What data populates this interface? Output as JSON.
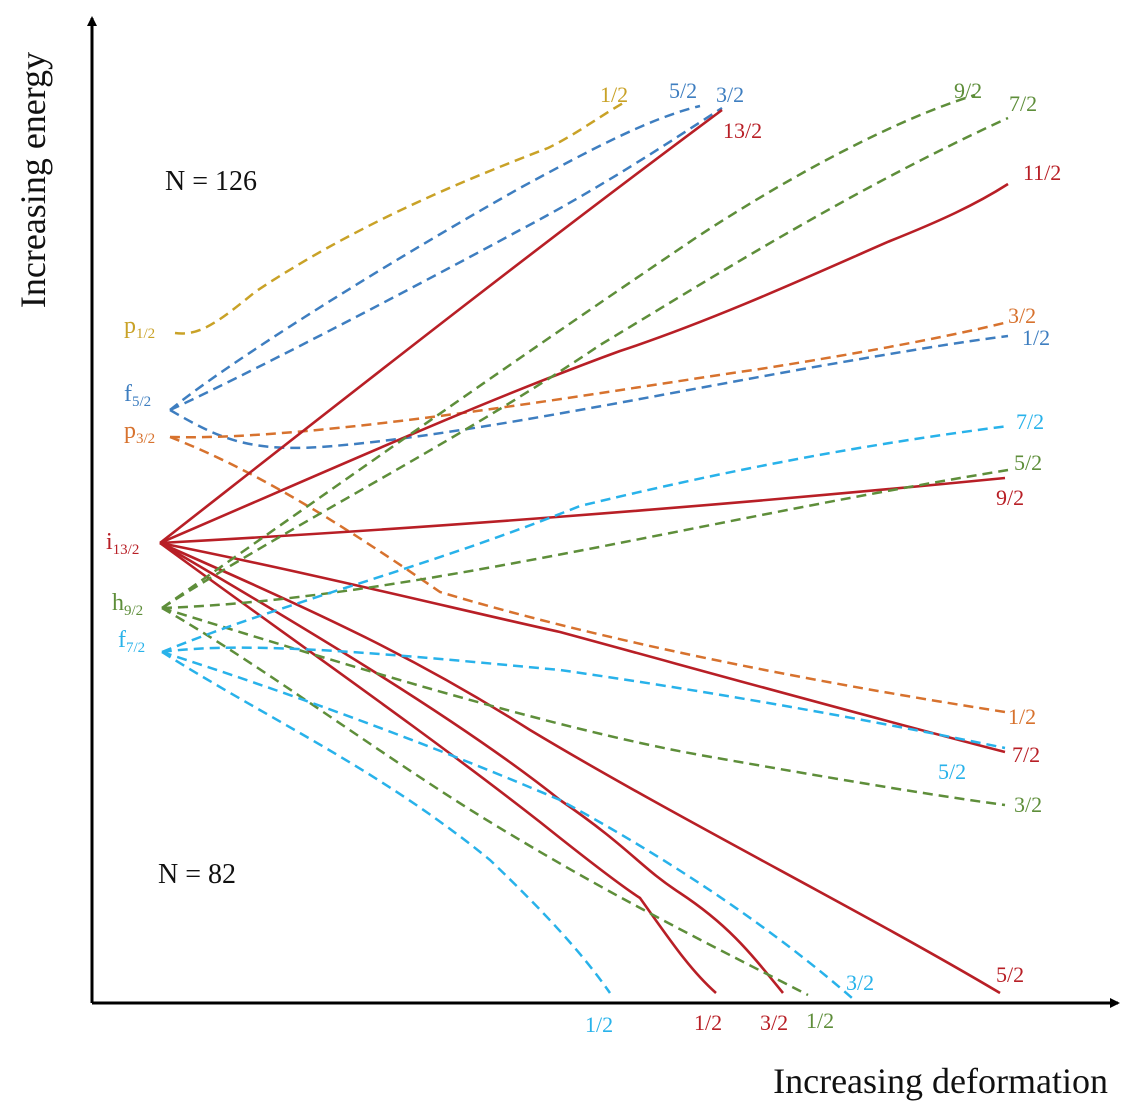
{
  "colors": {
    "axis": "#000000",
    "p12": "#C9A227",
    "f52": "#3E7EC0",
    "p32": "#D7722E",
    "i132": "#B81F26",
    "h92": "#5E8E3A",
    "f72": "#28B2EA"
  },
  "axes": {
    "y_title": "Increasing energy",
    "x_title": "Increasing deformation"
  },
  "regions": {
    "upper": "N = 126",
    "lower": "N = 82"
  },
  "states": {
    "p12": {
      "main": "p",
      "sub": "1/2"
    },
    "f52": {
      "main": "f",
      "sub": "5/2"
    },
    "p32": {
      "main": "p",
      "sub": "3/2"
    },
    "i132": {
      "main": "i",
      "sub": "13/2"
    },
    "h92": {
      "main": "h",
      "sub": "9/2"
    },
    "f72": {
      "main": "f",
      "sub": "7/2"
    }
  },
  "levels": [
    {
      "id": "p12-1-2",
      "origin": "p12",
      "label": "1/2",
      "dashed": true
    },
    {
      "id": "f52-5-2",
      "origin": "f52",
      "label": "5/2",
      "dashed": true
    },
    {
      "id": "f52-3-2",
      "origin": "f52",
      "label": "3/2",
      "dashed": true
    },
    {
      "id": "f52-1-2",
      "origin": "f52",
      "label": "1/2",
      "dashed": true
    },
    {
      "id": "p32-3-2",
      "origin": "p32",
      "label": "3/2",
      "dashed": true
    },
    {
      "id": "p32-1-2",
      "origin": "p32",
      "label": "1/2",
      "dashed": true
    },
    {
      "id": "i132-13-2",
      "origin": "i132",
      "label": "13/2",
      "dashed": false
    },
    {
      "id": "i132-11-2",
      "origin": "i132",
      "label": "11/2",
      "dashed": false
    },
    {
      "id": "i132-9-2",
      "origin": "i132",
      "label": "9/2",
      "dashed": false
    },
    {
      "id": "i132-7-2",
      "origin": "i132",
      "label": "7/2",
      "dashed": false
    },
    {
      "id": "i132-5-2",
      "origin": "i132",
      "label": "5/2",
      "dashed": false
    },
    {
      "id": "i132-3-2",
      "origin": "i132",
      "label": "3/2",
      "dashed": false
    },
    {
      "id": "i132-1-2",
      "origin": "i132",
      "label": "1/2",
      "dashed": false
    },
    {
      "id": "h92-9-2",
      "origin": "h92",
      "label": "9/2",
      "dashed": true
    },
    {
      "id": "h92-7-2",
      "origin": "h92",
      "label": "7/2",
      "dashed": true
    },
    {
      "id": "h92-5-2",
      "origin": "h92",
      "label": "5/2",
      "dashed": true
    },
    {
      "id": "h92-3-2",
      "origin": "h92",
      "label": "3/2",
      "dashed": true
    },
    {
      "id": "h92-1-2",
      "origin": "h92",
      "label": "1/2",
      "dashed": true
    },
    {
      "id": "f72-7-2",
      "origin": "f72",
      "label": "7/2",
      "dashed": true
    },
    {
      "id": "f72-5-2",
      "origin": "f72",
      "label": "5/2",
      "dashed": true
    },
    {
      "id": "f72-3-2",
      "origin": "f72",
      "label": "3/2",
      "dashed": true
    },
    {
      "id": "f72-1-2",
      "origin": "f72",
      "label": "1/2",
      "dashed": true
    }
  ]
}
